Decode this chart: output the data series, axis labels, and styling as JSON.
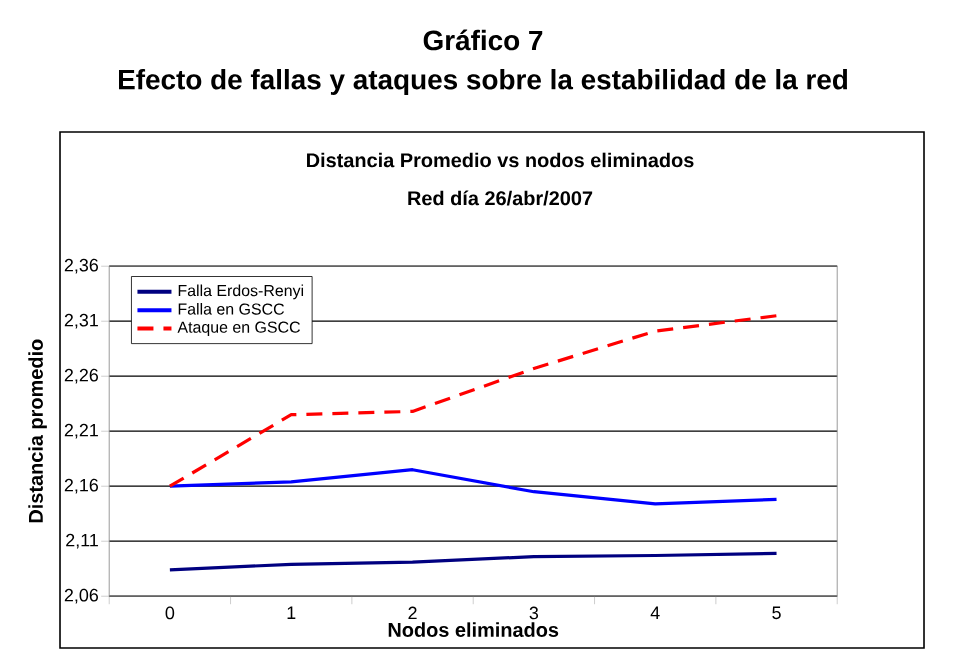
{
  "chart_data": {
    "type": "line",
    "title": "Gráfico 7",
    "subtitle": "Efecto de fallas y ataques sobre la estabilidad de la red",
    "annotations": [
      "Distancia Promedio vs nodos eliminados",
      "Red día 26/abr/2007"
    ],
    "xlabel": "Nodos eliminados",
    "ylabel": "Distancia promedio",
    "categories": [
      "0",
      "1",
      "2",
      "3",
      "4",
      "5"
    ],
    "ylim": [
      2.06,
      2.36
    ],
    "yticks": [
      {
        "value": 2.06,
        "label": "2,06"
      },
      {
        "value": 2.11,
        "label": "2,11"
      },
      {
        "value": 2.16,
        "label": "2,16"
      },
      {
        "value": 2.21,
        "label": "2,21"
      },
      {
        "value": 2.26,
        "label": "2,26"
      },
      {
        "value": 2.31,
        "label": "2,31"
      },
      {
        "value": 2.36,
        "label": "2,36"
      }
    ],
    "grid": "y",
    "legend": "top left",
    "marker": "none",
    "series": [
      {
        "name": "Falla Erdos-Renyi",
        "color": "#000080",
        "values": [
          2.084,
          2.089,
          2.091,
          2.096,
          2.097,
          2.099
        ]
      },
      {
        "name": "Falla en GSCC",
        "color": "#0000ff",
        "values": [
          2.16,
          2.164,
          2.175,
          2.155,
          2.144,
          2.148
        ]
      },
      {
        "name": "Ataque en GSCC",
        "color": "#ff0000",
        "line_style": "dashed",
        "values": [
          2.16,
          2.225,
          2.228,
          2.267,
          2.301,
          2.315
        ]
      }
    ]
  }
}
